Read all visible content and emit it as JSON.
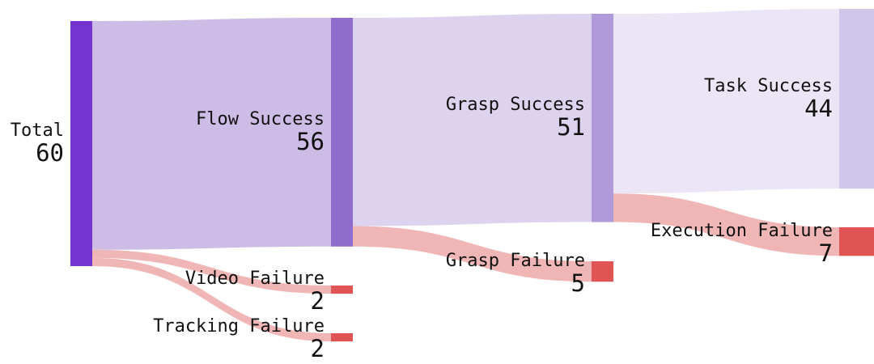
{
  "chart_data": {
    "type": "sankey",
    "nodes": [
      {
        "id": "total",
        "label": "Total",
        "value": 60,
        "color": "#7434d0"
      },
      {
        "id": "flow_success",
        "label": "Flow Success",
        "value": 56,
        "color": "#8f6bcb"
      },
      {
        "id": "video_failure",
        "label": "Video Failure",
        "value": 2,
        "color": "#e05454"
      },
      {
        "id": "tracking_failure",
        "label": "Tracking Failure",
        "value": 2,
        "color": "#e05454"
      },
      {
        "id": "grasp_success",
        "label": "Grasp Success",
        "value": 51,
        "color": "#b09ad9"
      },
      {
        "id": "grasp_failure",
        "label": "Grasp Failure",
        "value": 5,
        "color": "#e05454"
      },
      {
        "id": "task_success",
        "label": "Task Success",
        "value": 44,
        "color": "#d0c6ea"
      },
      {
        "id": "execution_failure",
        "label": "Execution Failure",
        "value": 7,
        "color": "#e05454"
      }
    ],
    "links": [
      {
        "source": "total",
        "target": "flow_success",
        "value": 56,
        "color": "#cdbde6"
      },
      {
        "source": "total",
        "target": "video_failure",
        "value": 2,
        "color": "#f0b6b6"
      },
      {
        "source": "total",
        "target": "tracking_failure",
        "value": 2,
        "color": "#f0b6b6"
      },
      {
        "source": "flow_success",
        "target": "grasp_success",
        "value": 51,
        "color": "#ddd3ef"
      },
      {
        "source": "flow_success",
        "target": "grasp_failure",
        "value": 5,
        "color": "#f0b6b6"
      },
      {
        "source": "grasp_success",
        "target": "task_success",
        "value": 44,
        "color": "#ebe5f6"
      },
      {
        "source": "grasp_success",
        "target": "execution_failure",
        "value": 7,
        "color": "#f0b6b6"
      }
    ]
  }
}
